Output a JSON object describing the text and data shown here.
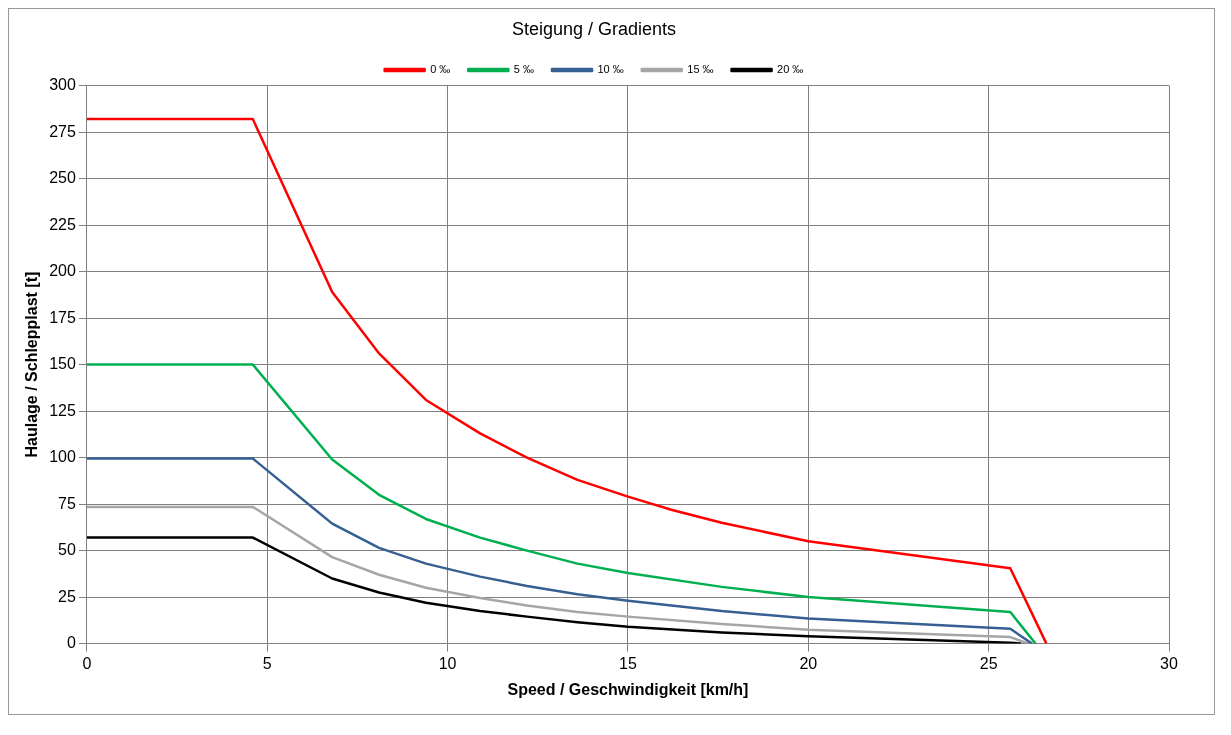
{
  "chart_data": {
    "type": "line",
    "title": "Steigung / Gradients",
    "xlabel": "Speed / Geschwindigkeit [km/h]",
    "ylabel": "Haulage / Schlepplast [t]",
    "xlim": [
      0,
      30
    ],
    "xticks": [
      0,
      5,
      10,
      15,
      20,
      25,
      30
    ],
    "ylim": [
      0,
      300
    ],
    "yticks": [
      0,
      25,
      50,
      75,
      100,
      125,
      150,
      175,
      200,
      225,
      250,
      275,
      300
    ],
    "grid": true,
    "legend": "top",
    "marker": "none",
    "series": [
      {
        "name": "0 ‰",
        "color": "#ff0000",
        "x": [
          0,
          4.6,
          6.8,
          8.1,
          9.4,
          10.9,
          12.2,
          13.6,
          15,
          16.2,
          17.6,
          20,
          25.6,
          26.6
        ],
        "values": [
          282,
          282,
          189,
          156,
          131,
          113,
          100,
          88,
          79,
          72,
          65,
          55,
          40.5,
          0
        ]
      },
      {
        "name": "5 ‰",
        "color": "#00b050",
        "x": [
          0,
          4.6,
          6.8,
          8.1,
          9.4,
          10.9,
          12.2,
          13.6,
          15,
          17.6,
          20,
          25.6,
          26.3
        ],
        "values": [
          150,
          150,
          99,
          80,
          67,
          57,
          50,
          43,
          38,
          30.5,
          25,
          17,
          0
        ]
      },
      {
        "name": "10 ‰",
        "color": "#376092",
        "x": [
          0,
          4.6,
          6.8,
          8.1,
          9.4,
          10.9,
          12.2,
          13.6,
          15,
          17.6,
          20,
          25.6,
          26.2
        ],
        "values": [
          99.5,
          99.5,
          64.5,
          51.5,
          43,
          36,
          31,
          26.5,
          23,
          17.5,
          13.5,
          8,
          0
        ]
      },
      {
        "name": "15 ‰",
        "color": "#a6a6a6",
        "x": [
          0,
          4.6,
          6.8,
          8.1,
          9.4,
          10.9,
          12.2,
          13.6,
          15,
          17.6,
          20,
          25.6,
          26.1
        ],
        "values": [
          73.5,
          73.5,
          46.5,
          37,
          30,
          24.5,
          20.5,
          17,
          14.5,
          10.5,
          7.5,
          3.5,
          0
        ]
      },
      {
        "name": "20 ‰",
        "color": "#000000",
        "x": [
          0,
          4.6,
          6.8,
          8.1,
          9.4,
          10.9,
          12.2,
          13.6,
          15,
          17.6,
          20,
          25.6,
          25.9
        ],
        "values": [
          57,
          57,
          35,
          27.5,
          22,
          17.5,
          14.5,
          11.5,
          9,
          6,
          4,
          0.5,
          0
        ]
      }
    ]
  }
}
